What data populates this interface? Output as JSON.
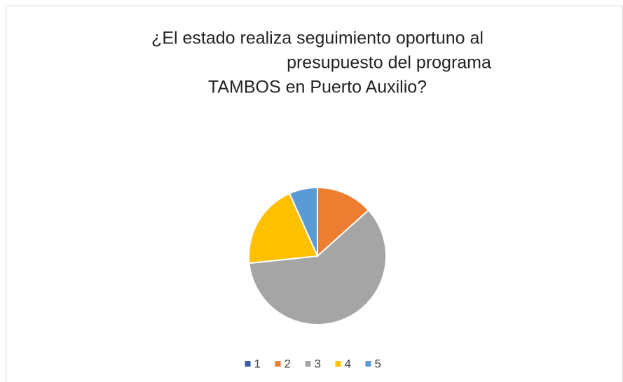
{
  "chart_data": {
    "type": "pie",
    "title": [
      "¿El estado realiza seguimiento oportuno al",
      "presupuesto del programa",
      "TAMBOS en Puerto Auxilio?"
    ],
    "categories": [
      "1",
      "2",
      "3",
      "4",
      "5"
    ],
    "values": [
      0,
      2,
      9,
      3,
      1
    ],
    "colors": [
      "#3a5ea8",
      "#ed7d31",
      "#a5a5a5",
      "#ffc000",
      "#5b9bd5"
    ],
    "legend": "bottom"
  }
}
